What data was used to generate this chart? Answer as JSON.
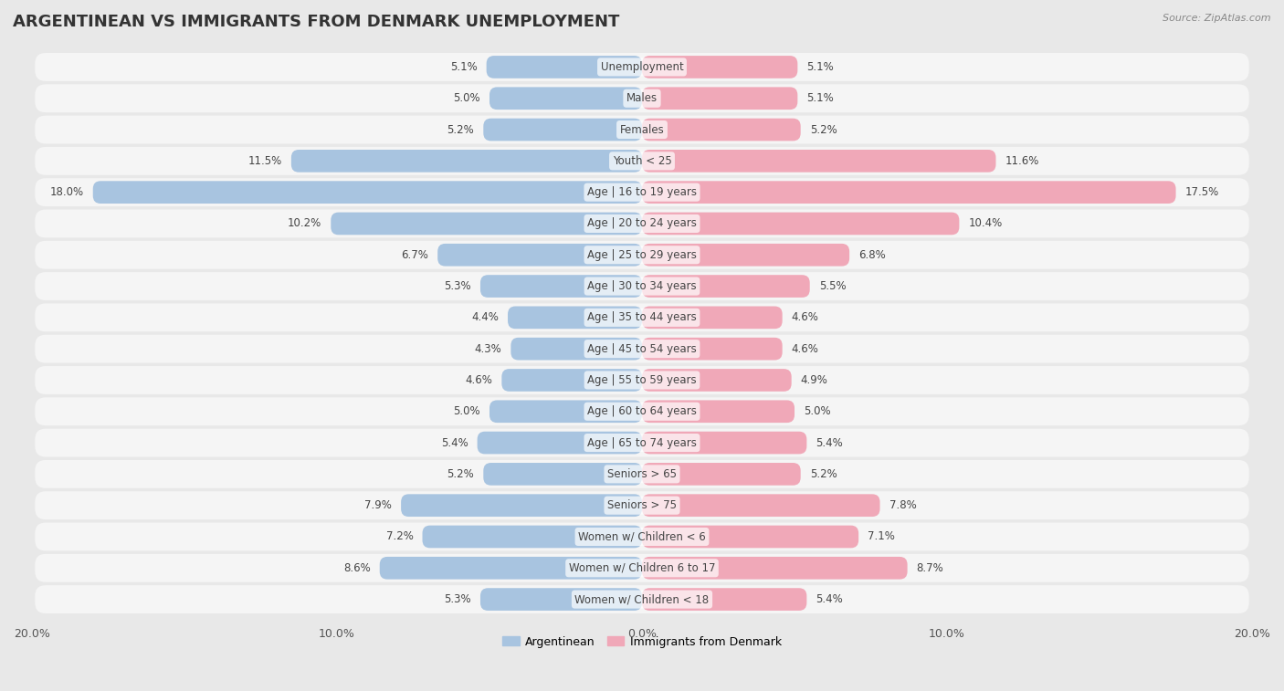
{
  "title": "ARGENTINEAN VS IMMIGRANTS FROM DENMARK UNEMPLOYMENT",
  "source": "Source: ZipAtlas.com",
  "categories": [
    "Unemployment",
    "Males",
    "Females",
    "Youth < 25",
    "Age | 16 to 19 years",
    "Age | 20 to 24 years",
    "Age | 25 to 29 years",
    "Age | 30 to 34 years",
    "Age | 35 to 44 years",
    "Age | 45 to 54 years",
    "Age | 55 to 59 years",
    "Age | 60 to 64 years",
    "Age | 65 to 74 years",
    "Seniors > 65",
    "Seniors > 75",
    "Women w/ Children < 6",
    "Women w/ Children 6 to 17",
    "Women w/ Children < 18"
  ],
  "argentinean": [
    5.1,
    5.0,
    5.2,
    11.5,
    18.0,
    10.2,
    6.7,
    5.3,
    4.4,
    4.3,
    4.6,
    5.0,
    5.4,
    5.2,
    7.9,
    7.2,
    8.6,
    5.3
  ],
  "denmark": [
    5.1,
    5.1,
    5.2,
    11.6,
    17.5,
    10.4,
    6.8,
    5.5,
    4.6,
    4.6,
    4.9,
    5.0,
    5.4,
    5.2,
    7.8,
    7.1,
    8.7,
    5.4
  ],
  "argentinean_color": "#a8c4e0",
  "denmark_color": "#f0a8b8",
  "background_color": "#e8e8e8",
  "row_bg_color": "#f5f5f5",
  "highlight_row": 4,
  "highlight_bg": "#d0e4f0",
  "xlim": 20.0,
  "legend_label_arg": "Argentinean",
  "legend_label_den": "Immigrants from Denmark",
  "title_fontsize": 13,
  "label_fontsize": 8.5,
  "value_fontsize": 8.5
}
